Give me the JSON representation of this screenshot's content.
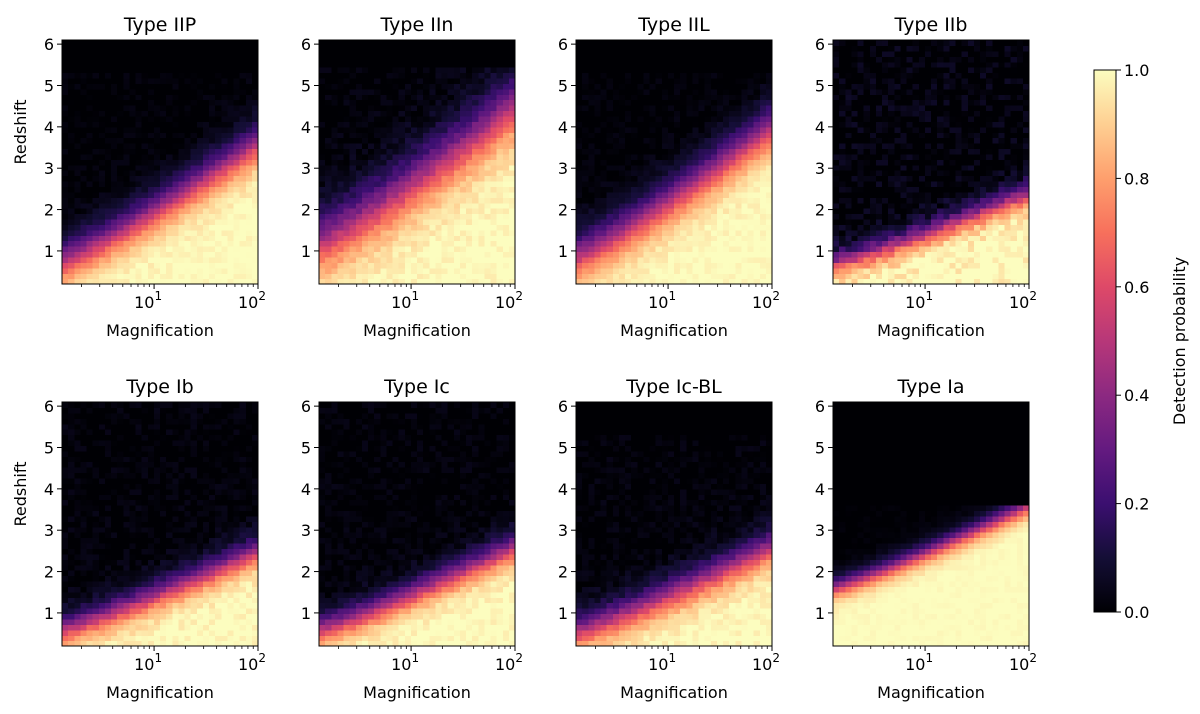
{
  "figure": {
    "colorbar": {
      "label": "Detection probability",
      "ticks": [
        "0.0",
        "0.2",
        "0.4",
        "0.6",
        "0.8",
        "1.0"
      ],
      "range": [
        0.0,
        1.0
      ],
      "colormap": "magma"
    }
  },
  "chart_data": [
    {
      "type": "heatmap",
      "title": "Type IIP",
      "xlabel": "Magnification",
      "ylabel": "Redshift",
      "xscale": "log",
      "xlim": [
        1.3,
        100
      ],
      "ylim": [
        0.2,
        6.1
      ],
      "x_ticks": [
        "10^1",
        "10^2"
      ],
      "y_ticks": [
        "1",
        "2",
        "3",
        "4",
        "5",
        "6"
      ],
      "z_max": 5.35,
      "boundary_z_at_min_mag": 0.75,
      "boundary_z_at_max_mag": 3.6,
      "transition_width": 0.8,
      "noise": 0.03
    },
    {
      "type": "heatmap",
      "title": "Type IIn",
      "xlabel": "Magnification",
      "ylabel": "",
      "xscale": "log",
      "xlim": [
        1.3,
        100
      ],
      "ylim": [
        0.2,
        6.1
      ],
      "x_ticks": [
        "10^1",
        "10^2"
      ],
      "y_ticks": [
        "1",
        "2",
        "3",
        "4",
        "5",
        "6"
      ],
      "z_max": 5.4,
      "boundary_z_at_min_mag": 1.2,
      "boundary_z_at_max_mag": 4.5,
      "transition_width": 1.2,
      "noise": 0.04
    },
    {
      "type": "heatmap",
      "title": "Type IIL",
      "xlabel": "Magnification",
      "ylabel": "",
      "xscale": "log",
      "xlim": [
        1.3,
        100
      ],
      "ylim": [
        0.2,
        6.1
      ],
      "x_ticks": [
        "10^1",
        "10^2"
      ],
      "y_ticks": [
        "1",
        "2",
        "3",
        "4",
        "5",
        "6"
      ],
      "z_max": 5.35,
      "boundary_z_at_min_mag": 0.85,
      "boundary_z_at_max_mag": 4.0,
      "transition_width": 0.9,
      "noise": 0.03
    },
    {
      "type": "heatmap",
      "title": "Type IIb",
      "xlabel": "Magnification",
      "ylabel": "",
      "xscale": "log",
      "xlim": [
        1.3,
        100
      ],
      "ylim": [
        0.2,
        6.1
      ],
      "x_ticks": [
        "10^1",
        "10^2"
      ],
      "y_ticks": [
        "1",
        "2",
        "3",
        "4",
        "5",
        "6"
      ],
      "z_max": 6.1,
      "boundary_z_at_min_mag": 0.7,
      "boundary_z_at_max_mag": 2.4,
      "transition_width": 0.5,
      "noise": 0.07
    },
    {
      "type": "heatmap",
      "title": "Type Ib",
      "xlabel": "Magnification",
      "ylabel": "Redshift",
      "xscale": "log",
      "xlim": [
        1.3,
        100
      ],
      "ylim": [
        0.2,
        6.1
      ],
      "x_ticks": [
        "10^1",
        "10^2"
      ],
      "y_ticks": [
        "1",
        "2",
        "3",
        "4",
        "5",
        "6"
      ],
      "z_max": 6.1,
      "boundary_z_at_min_mag": 0.6,
      "boundary_z_at_max_mag": 2.5,
      "transition_width": 0.6,
      "noise": 0.04
    },
    {
      "type": "heatmap",
      "title": "Type Ic",
      "xlabel": "Magnification",
      "ylabel": "",
      "xscale": "log",
      "xlim": [
        1.3,
        100
      ],
      "ylim": [
        0.2,
        6.1
      ],
      "x_ticks": [
        "10^1",
        "10^2"
      ],
      "y_ticks": [
        "1",
        "2",
        "3",
        "4",
        "5",
        "6"
      ],
      "z_max": 6.1,
      "boundary_z_at_min_mag": 0.6,
      "boundary_z_at_max_mag": 2.6,
      "transition_width": 0.6,
      "noise": 0.04
    },
    {
      "type": "heatmap",
      "title": "Type Ic-BL",
      "xlabel": "Magnification",
      "ylabel": "",
      "xscale": "log",
      "xlim": [
        1.3,
        100
      ],
      "ylim": [
        0.2,
        6.1
      ],
      "x_ticks": [
        "10^1",
        "10^2"
      ],
      "y_ticks": [
        "1",
        "2",
        "3",
        "4",
        "5",
        "6"
      ],
      "z_max": 5.35,
      "boundary_z_at_min_mag": 0.55,
      "boundary_z_at_max_mag": 2.6,
      "transition_width": 0.7,
      "noise": 0.04
    },
    {
      "type": "heatmap",
      "title": "Type Ia",
      "xlabel": "Magnification",
      "ylabel": "",
      "xscale": "log",
      "xlim": [
        1.3,
        100
      ],
      "ylim": [
        0.2,
        6.1
      ],
      "x_ticks": [
        "10^1",
        "10^2"
      ],
      "y_ticks": [
        "1",
        "2",
        "3",
        "4",
        "5",
        "6"
      ],
      "z_max": 3.6,
      "boundary_z_at_min_mag": 1.6,
      "boundary_z_at_max_mag": 3.6,
      "transition_width": 0.4,
      "noise": 0.015
    }
  ]
}
